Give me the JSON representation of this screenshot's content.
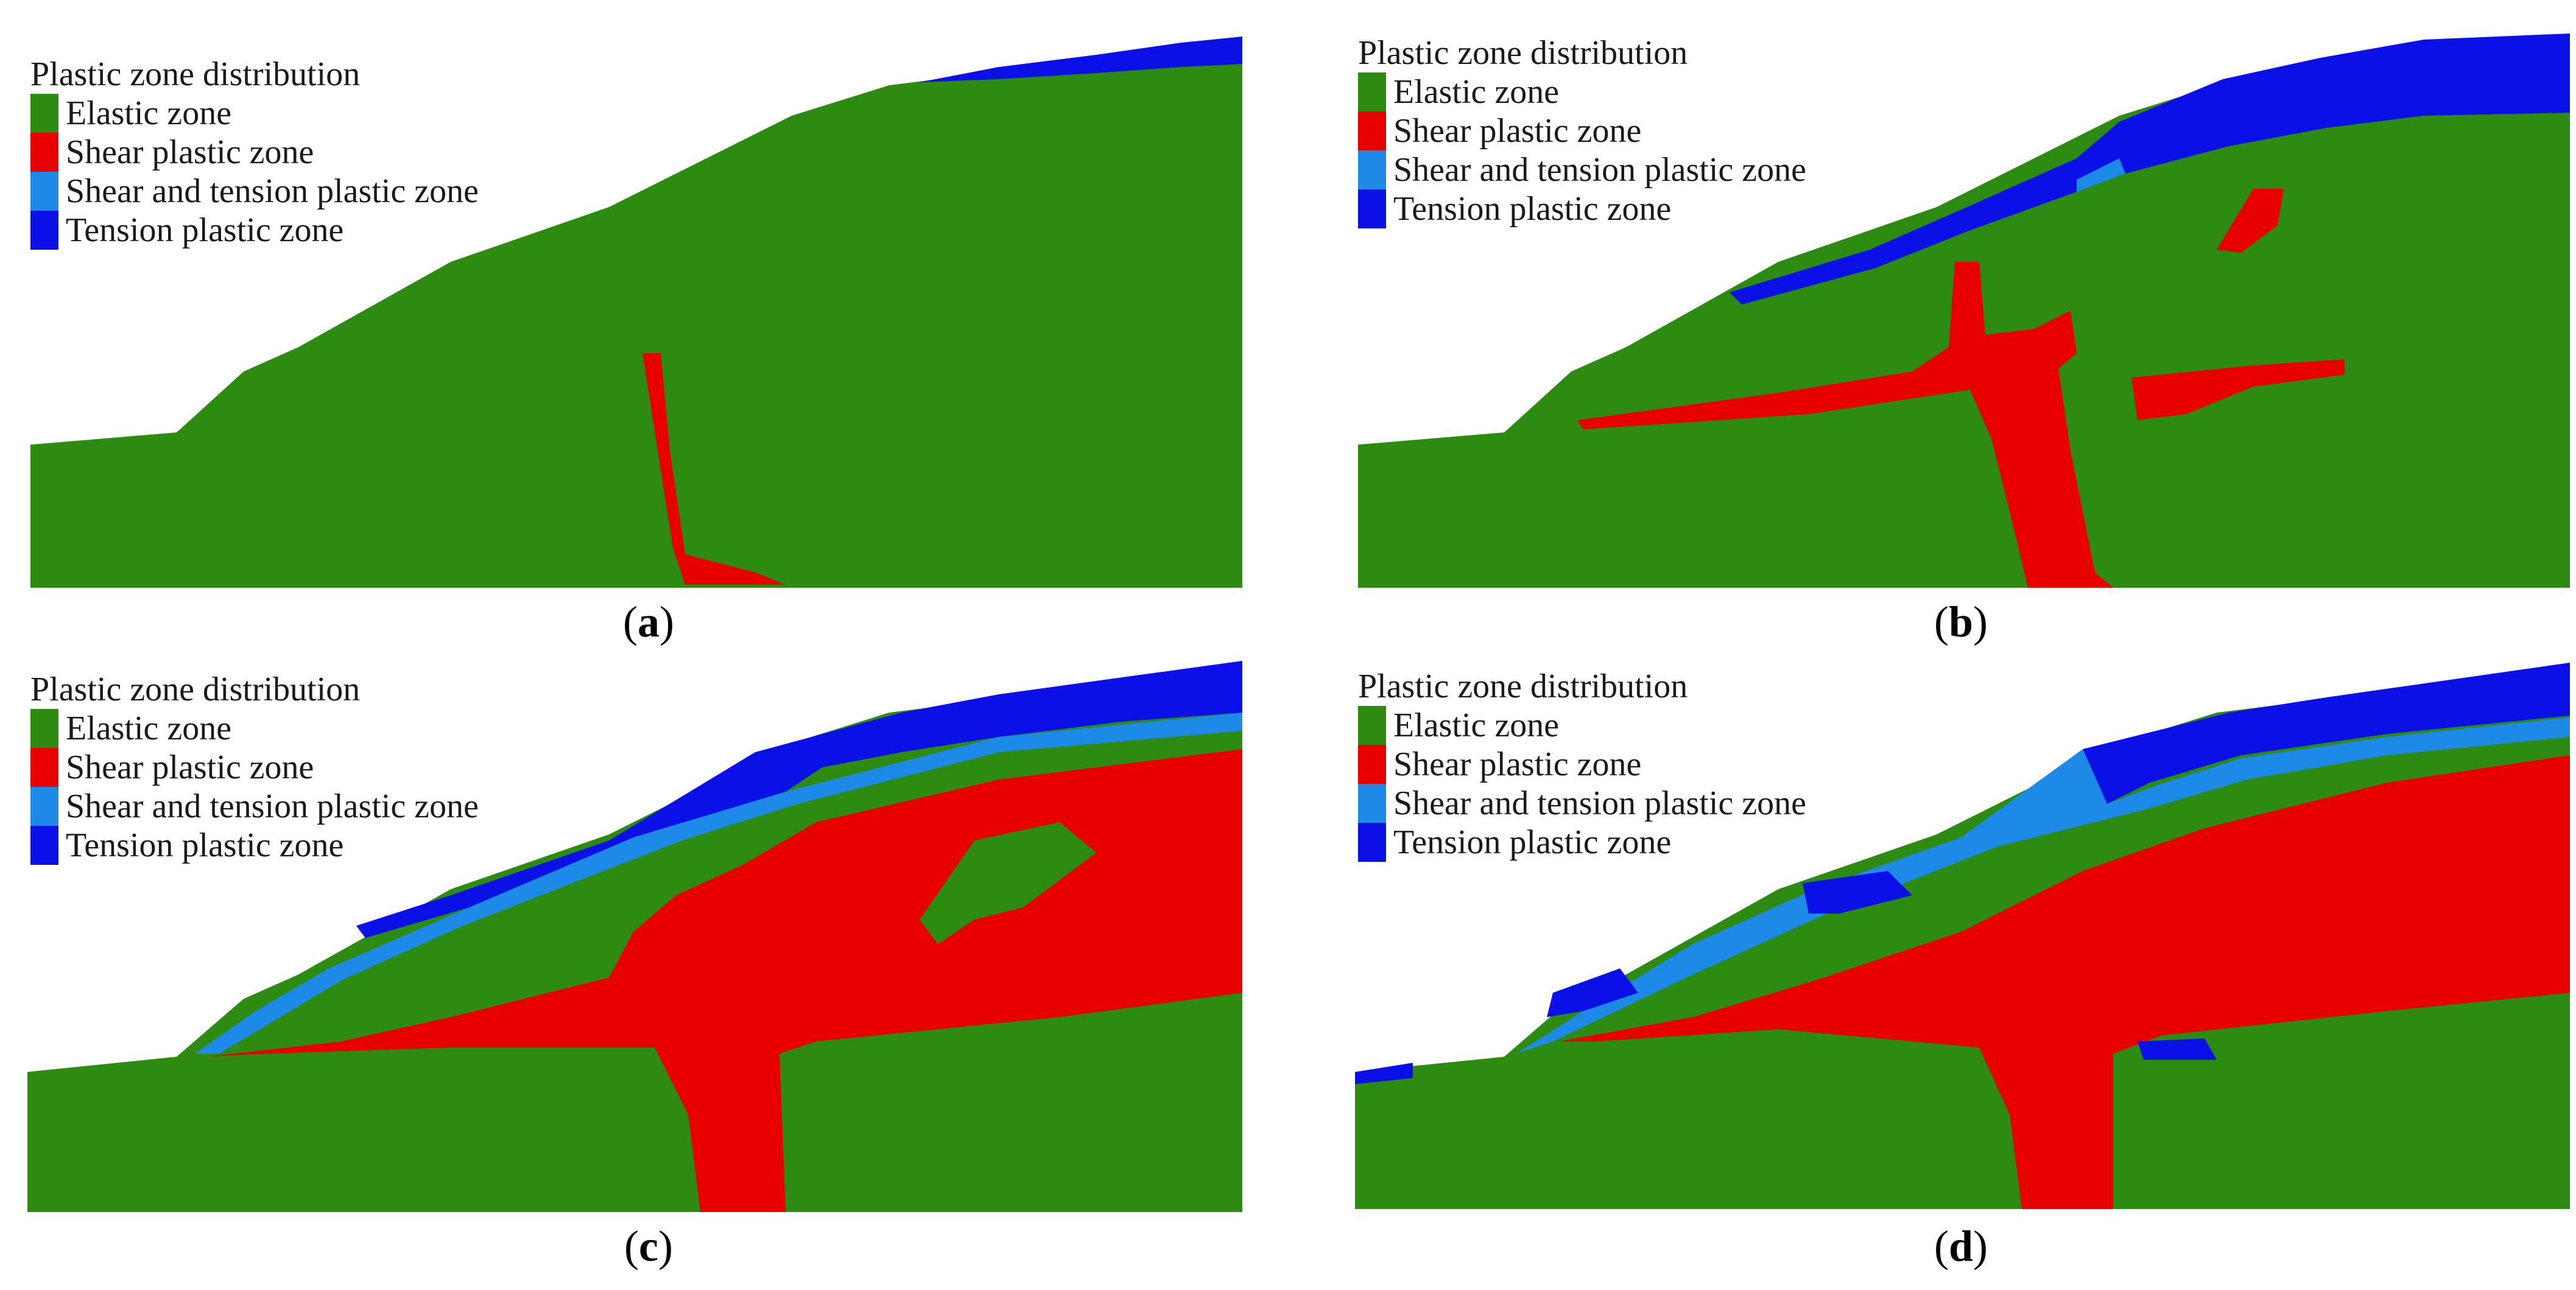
{
  "legend": {
    "title": "Plastic zone distribution",
    "items": [
      {
        "label": "Elastic zone",
        "color": "#2e8b12"
      },
      {
        "label": "Shear plastic  zone",
        "color": "#e80000"
      },
      {
        "label": "Shear and tension plastic  zone",
        "color": "#1e8ae8"
      },
      {
        "label": "Tension plastic  zone",
        "color": "#0a10e6"
      }
    ]
  },
  "panels": [
    {
      "id": "a",
      "caption_open": "(",
      "caption_letter": "a",
      "caption_close": ")"
    },
    {
      "id": "b",
      "caption_open": "(",
      "caption_letter": "b",
      "caption_close": ")"
    },
    {
      "id": "c",
      "caption_open": "(",
      "caption_letter": "c",
      "caption_close": ")"
    },
    {
      "id": "d",
      "caption_open": "(",
      "caption_letter": "d",
      "caption_close": ")"
    }
  ]
}
